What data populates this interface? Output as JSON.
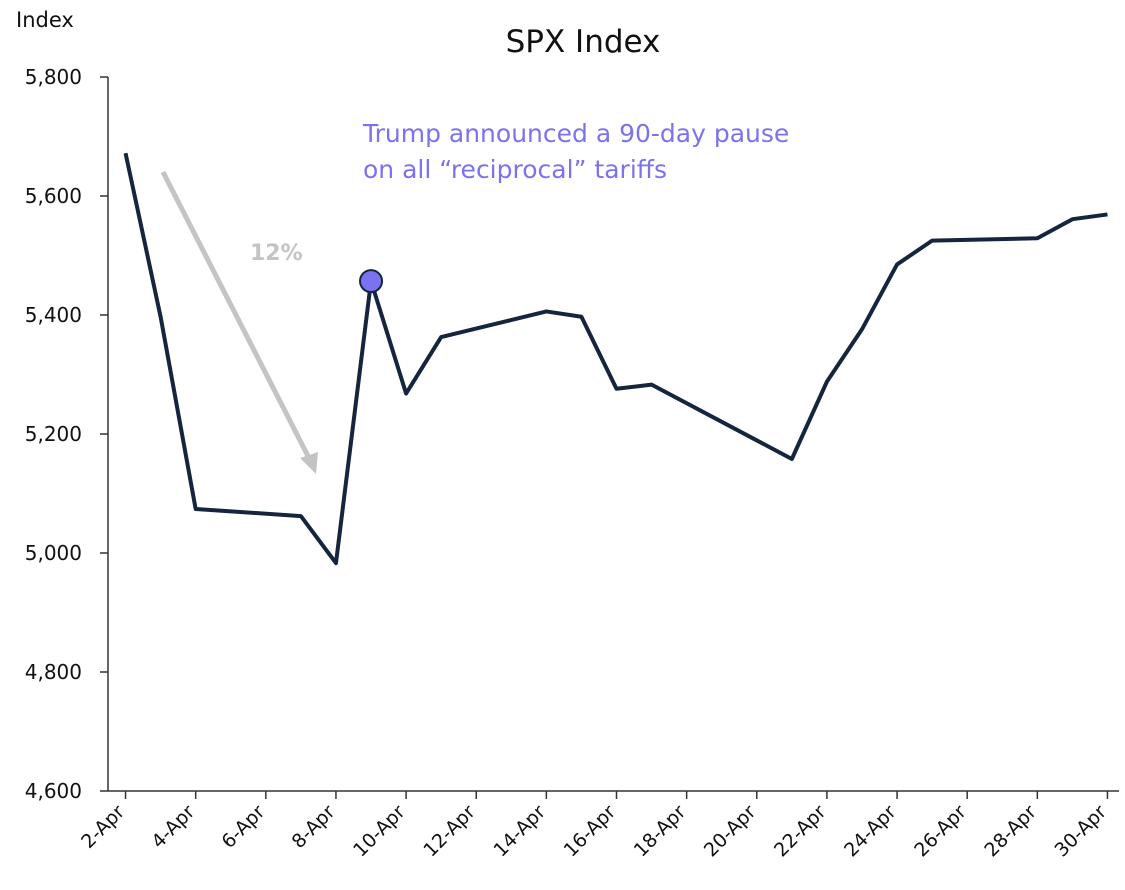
{
  "chart_data": {
    "type": "line",
    "title": "SPX Index",
    "y_label": "Index",
    "x": [
      2,
      3,
      4,
      7,
      8,
      9,
      10,
      11,
      14,
      15,
      16,
      17,
      21,
      22,
      23,
      24,
      25,
      28,
      29,
      30
    ],
    "series": [
      {
        "name": "SPX Index",
        "color": "#14253d",
        "values": [
          5672,
          5397,
          5074,
          5062,
          4983,
          5457,
          5268,
          5363,
          5406,
          5397,
          5276,
          5283,
          5158,
          5288,
          5376,
          5485,
          5525,
          5529,
          5561,
          5569
        ]
      }
    ],
    "xlim": [
      1.5,
      30.5
    ],
    "xticks": [
      {
        "value": 2,
        "label": "2-Apr"
      },
      {
        "value": 4,
        "label": "4-Apr"
      },
      {
        "value": 6,
        "label": "6-Apr"
      },
      {
        "value": 8,
        "label": "8-Apr"
      },
      {
        "value": 10,
        "label": "10-Apr"
      },
      {
        "value": 12,
        "label": "12-Apr"
      },
      {
        "value": 14,
        "label": "14-Apr"
      },
      {
        "value": 16,
        "label": "16-Apr"
      },
      {
        "value": 18,
        "label": "18-Apr"
      },
      {
        "value": 20,
        "label": "20-Apr"
      },
      {
        "value": 22,
        "label": "22-Apr"
      },
      {
        "value": 24,
        "label": "24-Apr"
      },
      {
        "value": 26,
        "label": "26-Apr"
      },
      {
        "value": 28,
        "label": "28-Apr"
      },
      {
        "value": 30,
        "label": "30-Apr"
      }
    ],
    "ylim": [
      4600,
      5800
    ],
    "yticks": [
      {
        "value": 4600,
        "label": "4,600"
      },
      {
        "value": 4800,
        "label": "4,800"
      },
      {
        "value": 5000,
        "label": "5,000"
      },
      {
        "value": 5200,
        "label": "5,200"
      },
      {
        "value": 5400,
        "label": "5,400"
      },
      {
        "value": 5600,
        "label": "5,600"
      },
      {
        "value": 5800,
        "label": "5,800"
      }
    ],
    "highlight": {
      "x": 9,
      "color": "#7b72f2",
      "text": [
        "Trump announced a 90-day pause",
        "on all “reciprocal” tariffs"
      ]
    },
    "arrow_label": "12%"
  }
}
